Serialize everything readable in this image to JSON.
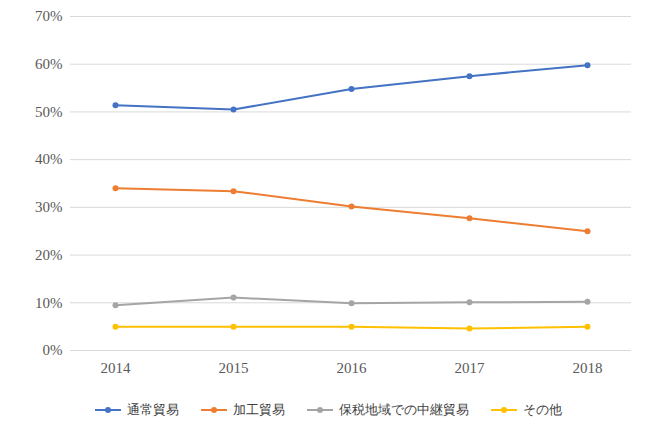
{
  "chart_data": {
    "type": "line",
    "categories": [
      "2014",
      "2015",
      "2016",
      "2017",
      "2018"
    ],
    "series": [
      {
        "name": "通常貿易",
        "color": "#4472c4",
        "values": [
          51.4,
          50.5,
          54.8,
          57.5,
          59.8
        ]
      },
      {
        "name": "加工貿易",
        "color": "#ed7d31",
        "values": [
          34.0,
          33.4,
          30.2,
          27.7,
          25.0
        ]
      },
      {
        "name": "保税地域での中継貿易",
        "color": "#a5a5a5",
        "values": [
          9.5,
          11.1,
          9.9,
          10.1,
          10.2
        ]
      },
      {
        "name": "その他",
        "color": "#ffc000",
        "values": [
          5.0,
          5.0,
          5.0,
          4.6,
          5.0
        ]
      }
    ],
    "ylim": [
      0,
      70
    ],
    "yticks": [
      {
        "value": 0,
        "label": "0%"
      },
      {
        "value": 10,
        "label": "10%"
      },
      {
        "value": 20,
        "label": "20%"
      },
      {
        "value": 30,
        "label": "30%"
      },
      {
        "value": 40,
        "label": "40%"
      },
      {
        "value": 50,
        "label": "50%"
      },
      {
        "value": 60,
        "label": "60%"
      },
      {
        "value": 70,
        "label": "70%"
      }
    ],
    "grid": true,
    "legend": "bottom",
    "marker": "circle"
  }
}
